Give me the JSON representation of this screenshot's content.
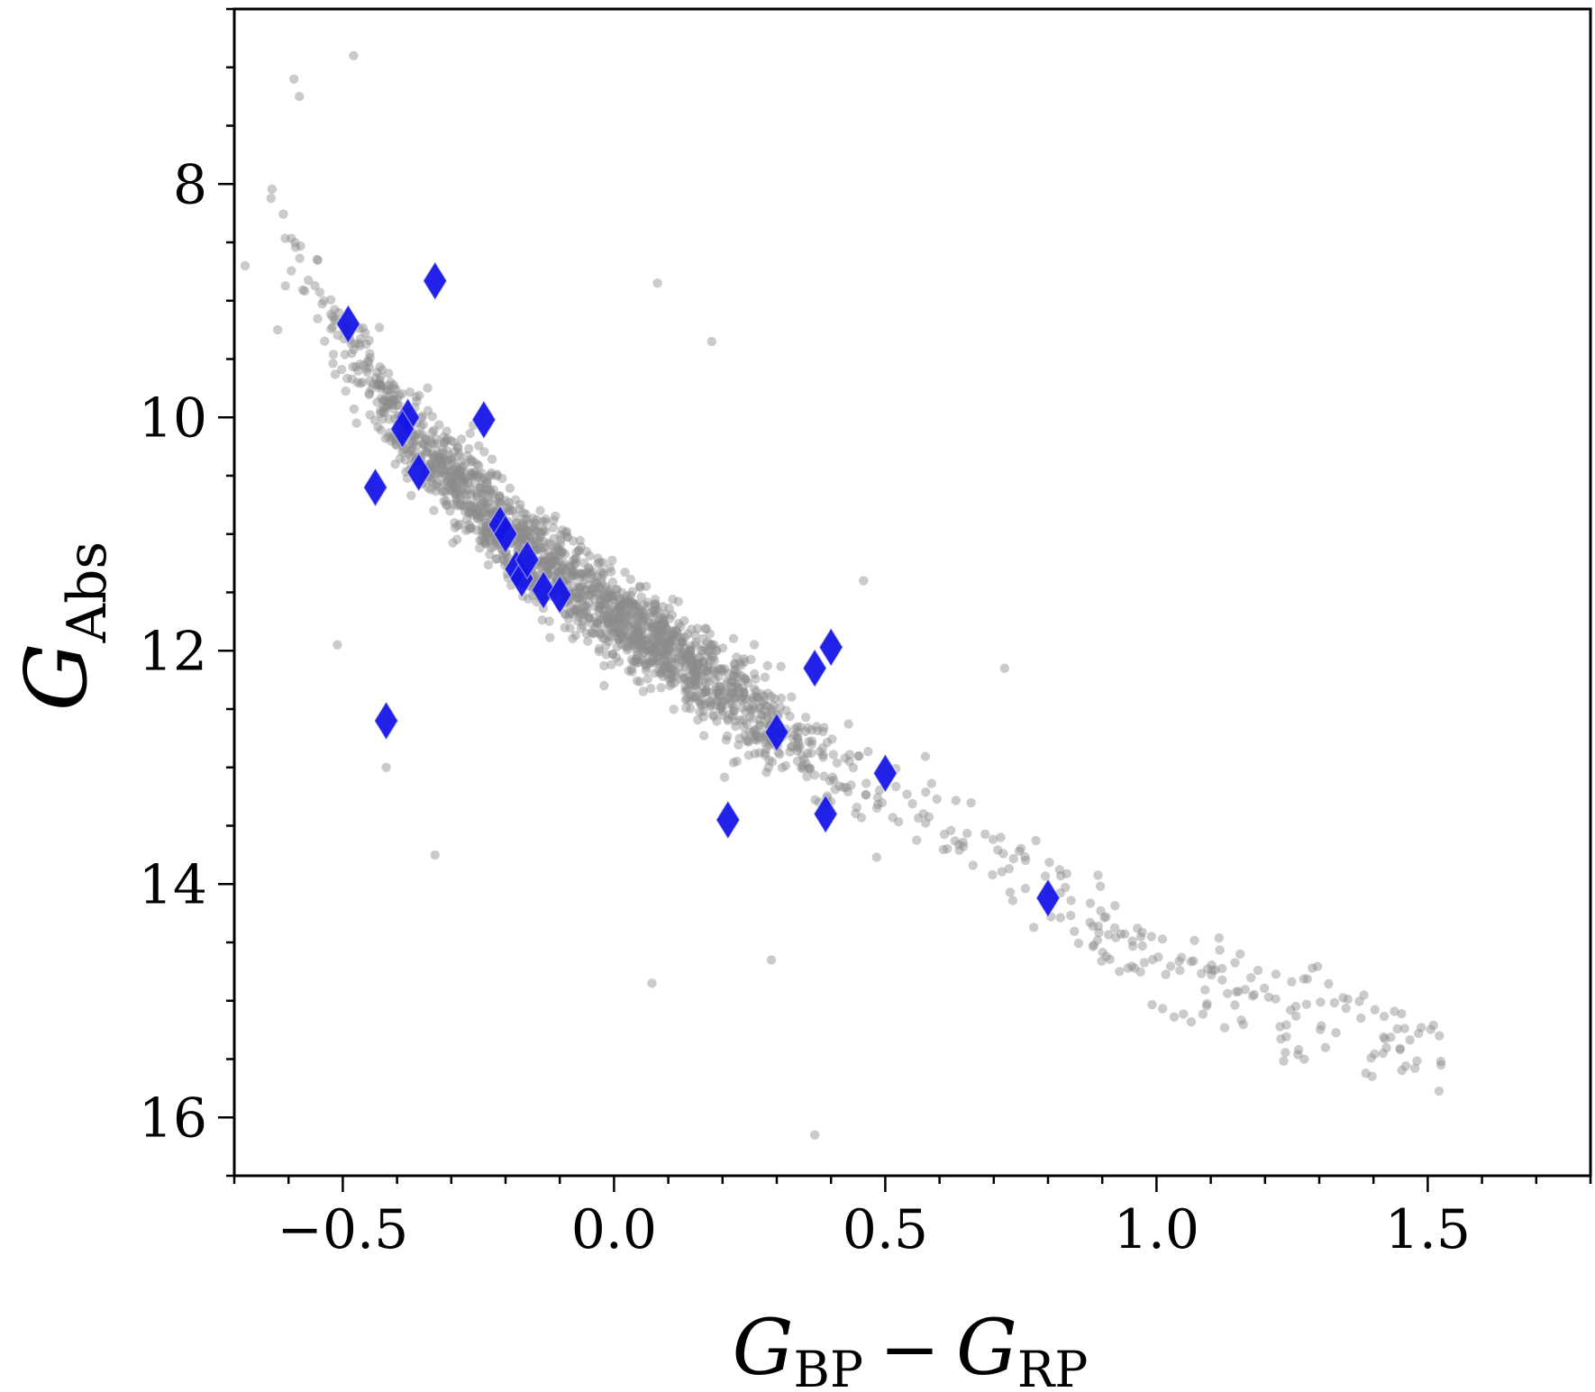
{
  "chart_data": {
    "type": "scatter",
    "title": "",
    "xlabel": {
      "main": "G",
      "sub1": "BP",
      "minus": "−",
      "main2": "G",
      "sub2": "RP"
    },
    "ylabel": {
      "main": "G",
      "sub": "Abs"
    },
    "xlim": [
      -0.7,
      1.8
    ],
    "ylim": [
      16.5,
      6.5
    ],
    "x_ticks": [
      -0.5,
      0.0,
      0.5,
      1.0,
      1.5
    ],
    "x_tick_labels": [
      "−0.5",
      "0.0",
      "0.5",
      "1.0",
      "1.5"
    ],
    "y_ticks": [
      8,
      10,
      12,
      14,
      16
    ],
    "y_tick_labels": [
      "8",
      "10",
      "12",
      "14",
      "16"
    ],
    "grid": false,
    "colors": {
      "background_points": "#8c8c8c",
      "highlight": "#1515e6"
    },
    "series": [
      {
        "marker": "circle",
        "trend_description": "dense grey sequence of ~2000 points following a main-sequence band",
        "band": {
          "x_range": [
            -0.65,
            1.53
          ],
          "center_fn_points": [
            [
              -0.6,
              8.6
            ],
            [
              -0.4,
              10.0
            ],
            [
              -0.2,
              11.0
            ],
            [
              0.0,
              11.7
            ],
            [
              0.2,
              12.3
            ],
            [
              0.4,
              13.0
            ],
            [
              0.6,
              13.5
            ],
            [
              0.8,
              14.1
            ],
            [
              1.0,
              14.6
            ],
            [
              1.2,
              15.0
            ],
            [
              1.5,
              15.4
            ]
          ],
          "outliers": [
            [
              -0.48,
              6.9
            ],
            [
              -0.59,
              7.1
            ],
            [
              -0.58,
              7.25
            ],
            [
              -0.68,
              8.7
            ],
            [
              -0.62,
              9.25
            ],
            [
              -0.51,
              11.95
            ],
            [
              -0.42,
              13.0
            ],
            [
              -0.33,
              13.75
            ],
            [
              0.07,
              14.85
            ],
            [
              0.29,
              14.65
            ],
            [
              0.37,
              16.15
            ],
            [
              0.72,
              12.15
            ],
            [
              0.46,
              11.4
            ],
            [
              0.08,
              8.85
            ],
            [
              0.18,
              9.35
            ]
          ]
        }
      },
      {
        "marker": "diamond",
        "points": [
          {
            "x": -0.49,
            "y": 9.2
          },
          {
            "x": -0.33,
            "y": 8.83
          },
          {
            "x": -0.38,
            "y": 10.0
          },
          {
            "x": -0.39,
            "y": 10.1
          },
          {
            "x": -0.24,
            "y": 10.02
          },
          {
            "x": -0.44,
            "y": 10.6
          },
          {
            "x": -0.36,
            "y": 10.47
          },
          {
            "x": -0.21,
            "y": 10.92
          },
          {
            "x": -0.2,
            "y": 11.0
          },
          {
            "x": -0.18,
            "y": 11.3
          },
          {
            "x": -0.17,
            "y": 11.38
          },
          {
            "x": -0.16,
            "y": 11.22
          },
          {
            "x": -0.13,
            "y": 11.48
          },
          {
            "x": -0.1,
            "y": 11.52
          },
          {
            "x": -0.42,
            "y": 12.6
          },
          {
            "x": 0.4,
            "y": 11.97
          },
          {
            "x": 0.37,
            "y": 12.15
          },
          {
            "x": 0.3,
            "y": 12.7
          },
          {
            "x": 0.5,
            "y": 13.05
          },
          {
            "x": 0.21,
            "y": 13.45
          },
          {
            "x": 0.39,
            "y": 13.4
          },
          {
            "x": 0.8,
            "y": 14.12
          }
        ]
      }
    ]
  }
}
